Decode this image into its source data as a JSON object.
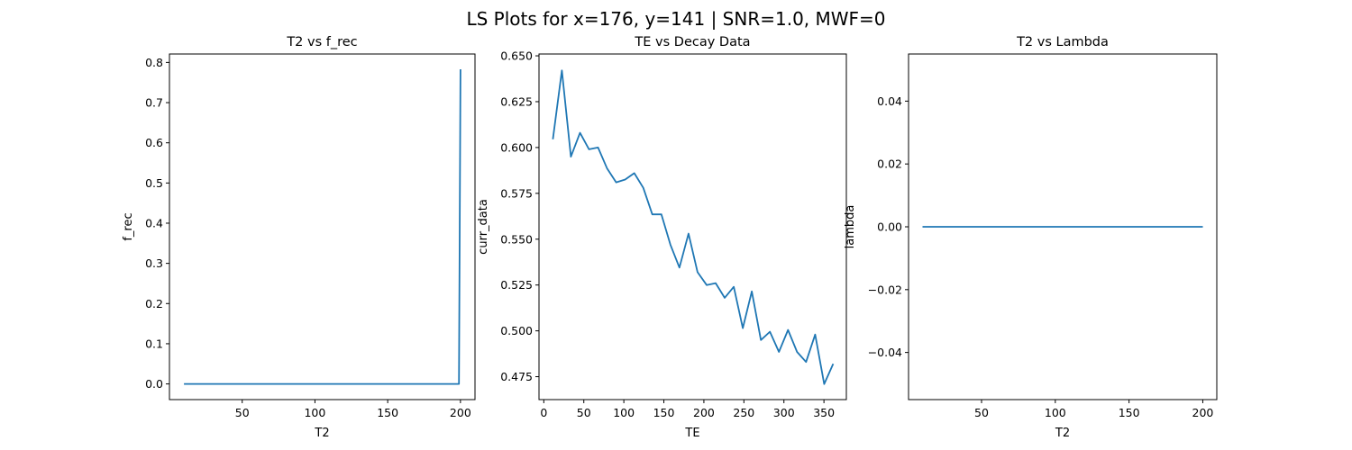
{
  "figure": {
    "suptitle": "LS Plots for x=176, y=141 | SNR=1.0, MWF=0"
  },
  "colors": {
    "series": "#1f77b4",
    "axes": "#000000",
    "background": "#ffffff"
  },
  "chart_data": [
    {
      "type": "line",
      "title": "T2 vs f_rec",
      "xlabel": "T2",
      "ylabel": "f_rec",
      "xlim": [
        0,
        210
      ],
      "ylim": [
        -0.039,
        0.821
      ],
      "xticks": [
        50,
        100,
        150,
        200
      ],
      "xtick_labels": [
        "50",
        "100",
        "150",
        "200"
      ],
      "yticks": [
        0,
        0.1,
        0.2,
        0.3,
        0.4,
        0.5,
        0.6,
        0.7,
        0.8
      ],
      "ytick_labels": [
        "0.0",
        "0.1",
        "0.2",
        "0.3",
        "0.4",
        "0.5",
        "0.6",
        "0.7",
        "0.8"
      ],
      "grid": false,
      "series": [
        {
          "x": [
            10,
            50,
            100,
            150,
            196,
            199,
            200
          ],
          "y": [
            0,
            0,
            0,
            0,
            0,
            0,
            0.783
          ]
        }
      ]
    },
    {
      "type": "line",
      "title": "TE vs Decay Data",
      "xlabel": "TE",
      "ylabel": "curr_data",
      "xlim": [
        -6,
        378
      ],
      "ylim": [
        0.4625,
        0.651
      ],
      "xticks": [
        0,
        50,
        100,
        150,
        200,
        250,
        300,
        350
      ],
      "xtick_labels": [
        "0",
        "50",
        "100",
        "150",
        "200",
        "250",
        "300",
        "350"
      ],
      "yticks": [
        0.475,
        0.5,
        0.525,
        0.55,
        0.575,
        0.6,
        0.625,
        0.65
      ],
      "ytick_labels": [
        "0.475",
        "0.500",
        "0.525",
        "0.550",
        "0.575",
        "0.600",
        "0.625",
        "0.650"
      ],
      "grid": false,
      "series": [
        {
          "x": [
            11.3,
            22.6,
            33.9,
            45.2,
            56.5,
            67.8,
            79.1,
            90.4,
            101.7,
            113,
            124.3,
            135.6,
            146.9,
            158.2,
            169.5,
            180.8,
            192.1,
            203.4,
            214.7,
            226,
            237.3,
            248.6,
            259.9,
            271.2,
            282.5,
            293.8,
            305.1,
            316.4,
            327.7,
            339,
            350.3,
            361.6
          ],
          "y": [
            0.6045,
            0.642,
            0.595,
            0.608,
            0.599,
            0.6,
            0.5885,
            0.581,
            0.5825,
            0.586,
            0.578,
            0.5635,
            0.5635,
            0.547,
            0.5345,
            0.553,
            0.532,
            0.525,
            0.526,
            0.518,
            0.524,
            0.5015,
            0.5215,
            0.495,
            0.4995,
            0.4885,
            0.5005,
            0.4885,
            0.483,
            0.498,
            0.471,
            0.482
          ]
        }
      ]
    },
    {
      "type": "line",
      "title": "T2 vs Lambda",
      "xlabel": "T2",
      "ylabel": "lambda",
      "xlim": [
        0.5,
        209.5
      ],
      "ylim": [
        -0.055,
        0.055
      ],
      "xticks": [
        50,
        100,
        150,
        200
      ],
      "xtick_labels": [
        "50",
        "100",
        "150",
        "200"
      ],
      "yticks": [
        -0.04,
        -0.02,
        0,
        0.02,
        0.04
      ],
      "ytick_labels": [
        "−0.04",
        "−0.02",
        "0.00",
        "0.02",
        "0.04"
      ],
      "grid": false,
      "series": [
        {
          "x": [
            10,
            200
          ],
          "y": [
            0,
            0
          ]
        }
      ]
    }
  ]
}
